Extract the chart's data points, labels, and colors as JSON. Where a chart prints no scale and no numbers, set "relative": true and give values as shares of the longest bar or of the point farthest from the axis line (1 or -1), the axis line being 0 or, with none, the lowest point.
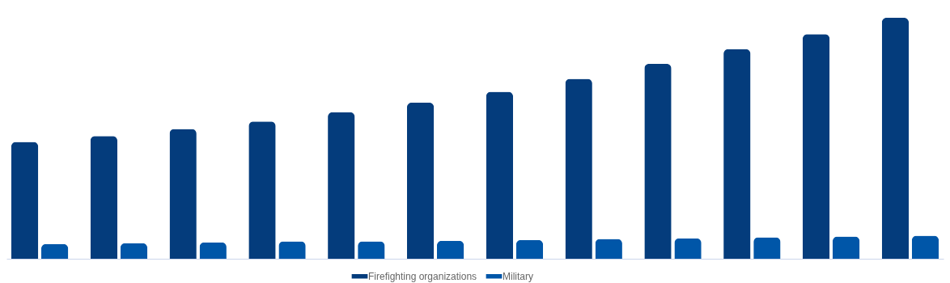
{
  "chart_data": {
    "type": "bar",
    "relative": true,
    "legend": "bottom",
    "categories": [
      null,
      null,
      null,
      null,
      null,
      null,
      null,
      null,
      null,
      null,
      null,
      null
    ],
    "series": [
      {
        "name": "Firefighting organizations",
        "color": "#043c7c",
        "values": [
          0.485,
          0.509,
          0.539,
          0.57,
          0.608,
          0.648,
          0.693,
          0.747,
          0.809,
          0.87,
          0.932,
          1
        ]
      },
      {
        "name": "Military",
        "color": "#0056a8",
        "values": [
          0.061,
          0.065,
          0.068,
          0.072,
          0.072,
          0.075,
          0.078,
          0.082,
          0.085,
          0.089,
          0.092,
          0.096
        ]
      }
    ]
  }
}
